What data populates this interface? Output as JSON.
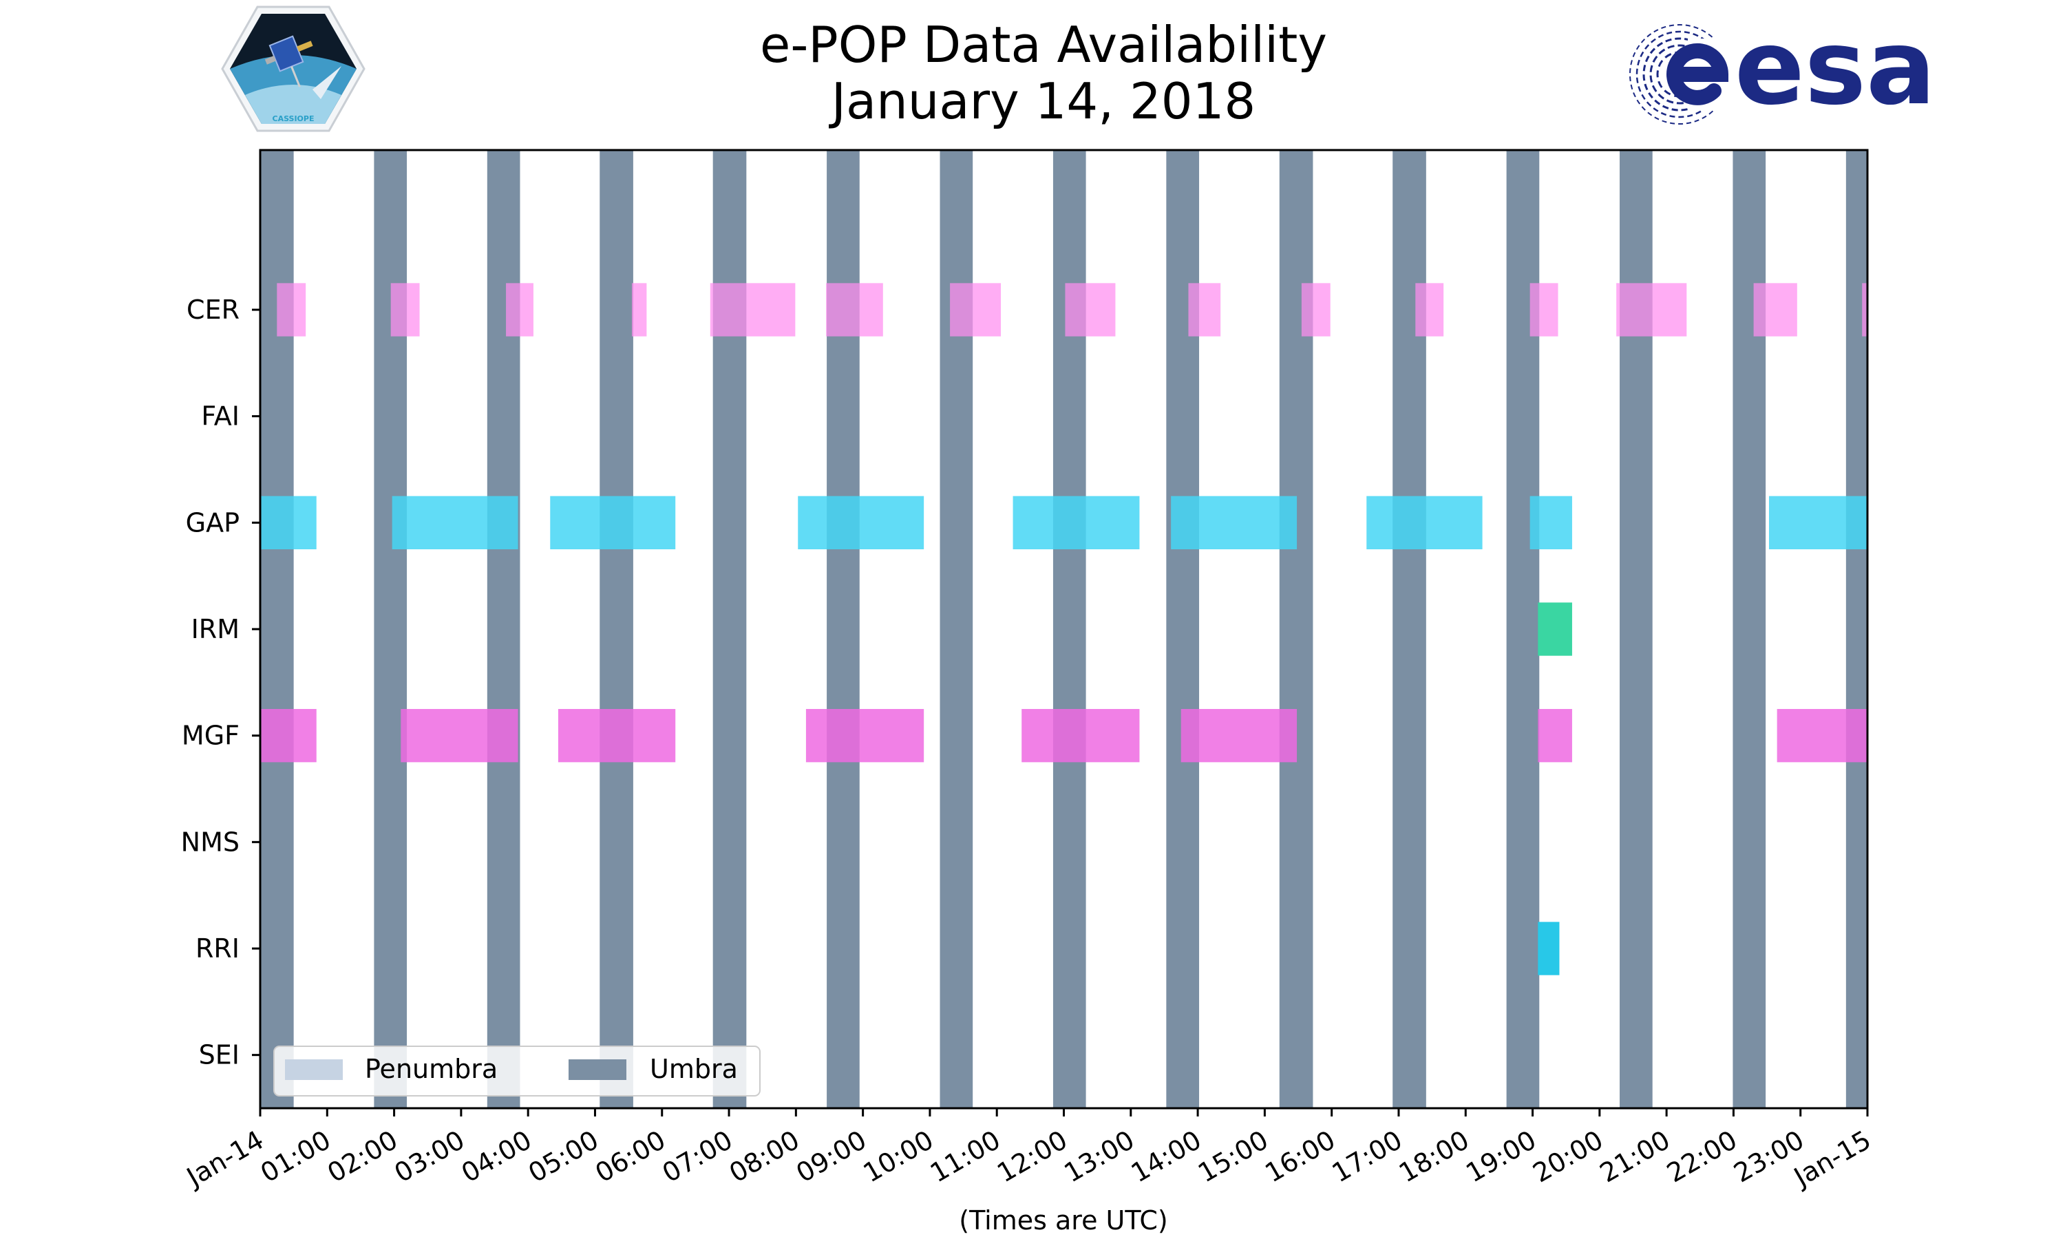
{
  "chart_data": {
    "type": "timeline",
    "title_lines": [
      "e-POP Data Availability",
      "January 14, 2018"
    ],
    "xlabel": "(Times are UTC)",
    "x_unit": "hours",
    "xlim": [
      0,
      24
    ],
    "x_ticks": [
      {
        "hour": 0,
        "label": "Jan-14"
      },
      {
        "hour": 1,
        "label": "01:00"
      },
      {
        "hour": 2,
        "label": "02:00"
      },
      {
        "hour": 3,
        "label": "03:00"
      },
      {
        "hour": 4,
        "label": "04:00"
      },
      {
        "hour": 5,
        "label": "05:00"
      },
      {
        "hour": 6,
        "label": "06:00"
      },
      {
        "hour": 7,
        "label": "07:00"
      },
      {
        "hour": 8,
        "label": "08:00"
      },
      {
        "hour": 9,
        "label": "09:00"
      },
      {
        "hour": 10,
        "label": "10:00"
      },
      {
        "hour": 11,
        "label": "11:00"
      },
      {
        "hour": 12,
        "label": "12:00"
      },
      {
        "hour": 13,
        "label": "13:00"
      },
      {
        "hour": 14,
        "label": "14:00"
      },
      {
        "hour": 15,
        "label": "15:00"
      },
      {
        "hour": 16,
        "label": "16:00"
      },
      {
        "hour": 17,
        "label": "17:00"
      },
      {
        "hour": 18,
        "label": "18:00"
      },
      {
        "hour": 19,
        "label": "19:00"
      },
      {
        "hour": 20,
        "label": "20:00"
      },
      {
        "hour": 21,
        "label": "21:00"
      },
      {
        "hour": 22,
        "label": "22:00"
      },
      {
        "hour": 23,
        "label": "23:00"
      },
      {
        "hour": 24,
        "label": "Jan-15"
      }
    ],
    "instruments": [
      "CER",
      "FAI",
      "GAP",
      "IRM",
      "MGF",
      "NMS",
      "RRI",
      "SEI"
    ],
    "ylim": [
      -0.5,
      8.5
    ],
    "legend": {
      "location": "lower-left",
      "entries": [
        {
          "label": "Penumbra",
          "color": "#c6d3e3"
        },
        {
          "label": "Umbra",
          "color": "#7b8fa3"
        }
      ]
    },
    "umbra_color": "#7b8fa3",
    "umbra_intervals": [
      [
        0.0,
        0.5
      ],
      [
        1.7,
        2.19
      ],
      [
        3.39,
        3.88
      ],
      [
        5.07,
        5.57
      ],
      [
        6.76,
        7.26
      ],
      [
        8.46,
        8.95
      ],
      [
        10.15,
        10.64
      ],
      [
        11.84,
        12.33
      ],
      [
        13.53,
        14.02
      ],
      [
        15.22,
        15.72
      ],
      [
        16.91,
        17.41
      ],
      [
        18.61,
        19.1
      ],
      [
        20.3,
        20.79
      ],
      [
        21.99,
        22.48
      ],
      [
        23.68,
        24.0
      ]
    ],
    "series": [
      {
        "name": "CER",
        "color": "#ff8ef0",
        "opacity": 0.72,
        "intervals": [
          [
            0.25,
            0.68
          ],
          [
            1.95,
            2.38
          ],
          [
            3.67,
            4.08
          ],
          [
            5.55,
            5.77
          ],
          [
            6.72,
            7.99
          ],
          [
            8.45,
            9.3
          ],
          [
            10.3,
            11.06
          ],
          [
            12.02,
            12.77
          ],
          [
            13.86,
            14.34
          ],
          [
            15.55,
            15.98
          ],
          [
            17.25,
            17.67
          ],
          [
            18.96,
            19.38
          ],
          [
            20.25,
            21.3
          ],
          [
            22.3,
            22.95
          ],
          [
            23.92,
            24.0
          ]
        ]
      },
      {
        "name": "FAI",
        "color": "#f06ee0",
        "opacity": 0.8,
        "intervals": []
      },
      {
        "name": "GAP",
        "color": "#45d6f5",
        "opacity": 0.85,
        "intervals": [
          [
            0.0,
            0.84
          ],
          [
            1.97,
            3.85
          ],
          [
            4.33,
            6.2
          ],
          [
            8.03,
            9.91
          ],
          [
            11.24,
            13.13
          ],
          [
            13.6,
            15.48
          ],
          [
            16.52,
            18.25
          ],
          [
            18.96,
            19.59
          ],
          [
            22.53,
            24.0
          ]
        ]
      },
      {
        "name": "IRM",
        "color": "#3ad6a2",
        "opacity": 1.0,
        "intervals": [
          [
            19.08,
            19.59
          ]
        ]
      },
      {
        "name": "MGF",
        "color": "#ee6ae2",
        "opacity": 0.85,
        "intervals": [
          [
            0.0,
            0.84
          ],
          [
            2.1,
            3.85
          ],
          [
            4.45,
            6.2
          ],
          [
            8.15,
            9.91
          ],
          [
            11.37,
            13.13
          ],
          [
            13.75,
            15.48
          ],
          [
            19.08,
            19.59
          ],
          [
            22.65,
            24.0
          ]
        ]
      },
      {
        "name": "NMS",
        "color": "#30c8e8",
        "opacity": 1.0,
        "intervals": []
      },
      {
        "name": "RRI",
        "color": "#28c8e8",
        "opacity": 1.0,
        "intervals": [
          [
            19.08,
            19.4
          ]
        ]
      },
      {
        "name": "SEI",
        "color": "#30c8e8",
        "opacity": 1.0,
        "intervals": []
      }
    ]
  },
  "logos": {
    "cassiope_text": "CASSIOPE",
    "esa_text": "esa",
    "esa_color": "#1c2a84"
  }
}
